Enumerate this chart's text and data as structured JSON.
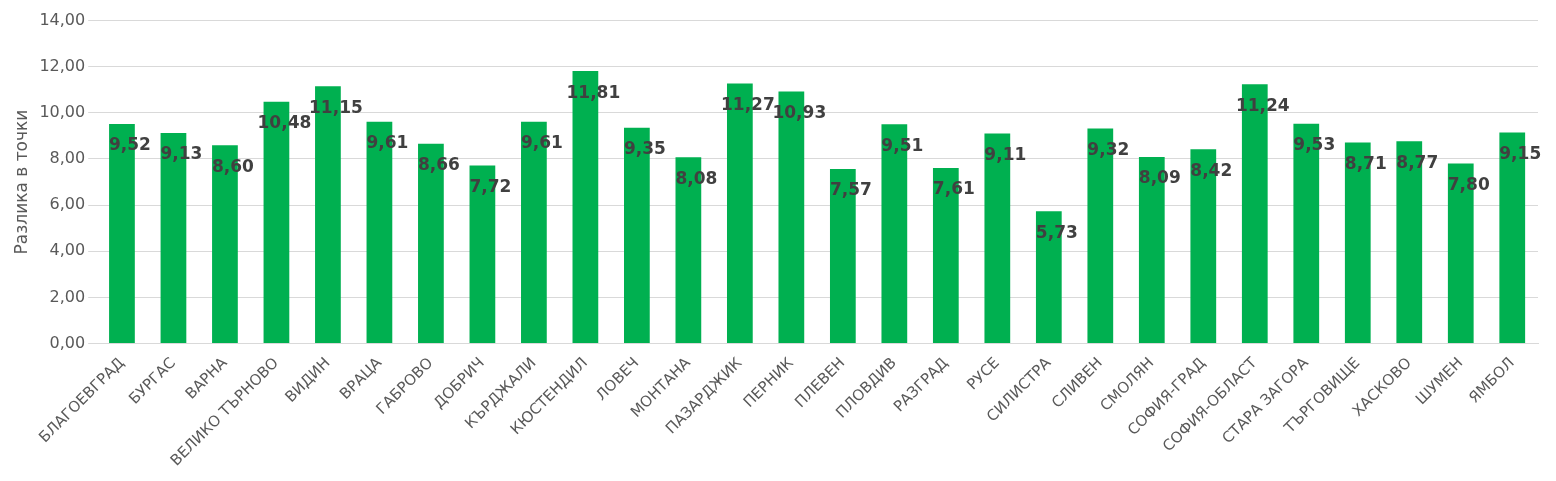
{
  "chart_data": {
    "type": "bar",
    "ylabel": "Разлика в точки",
    "categories": [
      "БЛАГОЕВГРАД",
      "БУРГАС",
      "ВАРНА",
      "ВЕЛИКО ТЪРНОВО",
      "ВИДИН",
      "ВРАЦА",
      "ГАБРОВО",
      "ДОБРИЧ",
      "КЪРДЖАЛИ",
      "КЮСТЕНДИЛ",
      "ЛОВЕЧ",
      "МОНТАНА",
      "ПАЗАРДЖИК",
      "ПЕРНИК",
      "ПЛЕВЕН",
      "ПЛОВДИВ",
      "РАЗГРАД",
      "РУСЕ",
      "СИЛИСТРА",
      "СЛИВЕН",
      "СМОЛЯН",
      "СОФИЯ-ГРАД",
      "СОФИЯ-ОБЛАСТ",
      "СТАРА ЗАГОРА",
      "ТЪРГОВИЩЕ",
      "ХАСКОВО",
      "ШУМЕН",
      "ЯМБОЛ"
    ],
    "values": [
      9.52,
      9.13,
      8.6,
      10.48,
      11.15,
      9.61,
      8.66,
      7.72,
      9.61,
      11.81,
      9.35,
      8.08,
      11.27,
      10.93,
      7.57,
      9.51,
      7.61,
      9.11,
      5.73,
      9.32,
      8.09,
      8.42,
      11.24,
      9.53,
      8.71,
      8.77,
      7.8,
      9.15
    ],
    "value_labels": [
      "9,52",
      "9,13",
      "8,60",
      "10,48",
      "11,15",
      "9,61",
      "8,66",
      "7,72",
      "9,61",
      "11,81",
      "9,35",
      "8,08",
      "11,27",
      "10,93",
      "7,57",
      "9,51",
      "7,61",
      "9,11",
      "5,73",
      "9,32",
      "8,09",
      "8,42",
      "11,24",
      "9,53",
      "8,71",
      "8,77",
      "7,80",
      "9,15"
    ],
    "color": "#00b050",
    "ylim": [
      0,
      14
    ],
    "yticks": [
      {
        "value": 0,
        "label": "0,00"
      },
      {
        "value": 2,
        "label": "2,00"
      },
      {
        "value": 4,
        "label": "4,00"
      },
      {
        "value": 6,
        "label": "6,00"
      },
      {
        "value": 8,
        "label": "8,00"
      },
      {
        "value": 10,
        "label": "10,00"
      },
      {
        "value": 12,
        "label": "12,00"
      },
      {
        "value": 14,
        "label": "14,00"
      }
    ],
    "grid": "y",
    "legend": false
  }
}
